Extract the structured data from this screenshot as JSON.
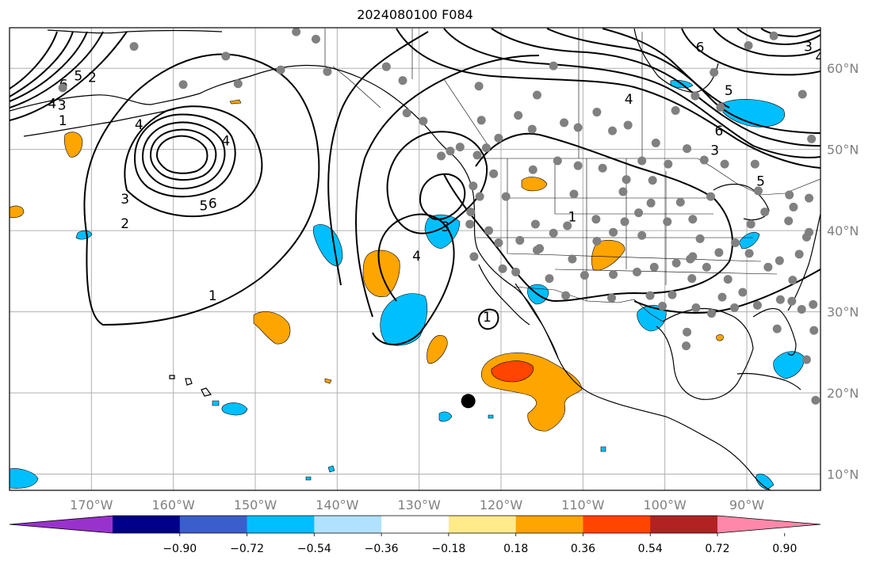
{
  "title": "2024080100 F084",
  "map": {
    "lon_range": [
      -180,
      -81
    ],
    "lat_range": [
      8,
      65
    ],
    "grid": true,
    "lon_labels": [
      "170°W",
      "160°W",
      "150°W",
      "140°W",
      "130°W",
      "120°W",
      "110°W",
      "100°W",
      "90°W"
    ],
    "lat_labels": [
      "10°N",
      "20°N",
      "30°N",
      "40°N",
      "50°N",
      "60°N"
    ],
    "lon_ticks": [
      -170,
      -160,
      -150,
      -140,
      -130,
      -120,
      -110,
      -100,
      -90
    ],
    "lat_ticks": [
      10,
      20,
      30,
      40,
      50,
      60
    ],
    "contour_color": "#000000",
    "contour_labels": [
      {
        "text": "6",
        "lon": -173.4,
        "lat": 57.9
      },
      {
        "text": "4",
        "lon": -174.8,
        "lat": 55.6
      },
      {
        "text": "3",
        "lon": -173.6,
        "lat": 55.4
      },
      {
        "text": "2",
        "lon": -169.9,
        "lat": 58.8
      },
      {
        "text": "5",
        "lon": -171.6,
        "lat": 59.0
      },
      {
        "text": "1",
        "lon": -173.5,
        "lat": 53.5
      },
      {
        "text": "4",
        "lon": -164.2,
        "lat": 53.0
      },
      {
        "text": "3",
        "lon": -165.9,
        "lat": 43.8
      },
      {
        "text": "2",
        "lon": -165.9,
        "lat": 40.8
      },
      {
        "text": "5",
        "lon": -156.3,
        "lat": 43.0
      },
      {
        "text": "6",
        "lon": -155.2,
        "lat": 43.3
      },
      {
        "text": "4",
        "lon": -153.6,
        "lat": 51.0
      },
      {
        "text": "1",
        "lon": -155.2,
        "lat": 31.9
      },
      {
        "text": "3",
        "lon": -126.8,
        "lat": 40.4
      },
      {
        "text": "4",
        "lon": -130.3,
        "lat": 36.8
      },
      {
        "text": "1",
        "lon": -121.7,
        "lat": 29.3
      },
      {
        "text": "1",
        "lon": -111.3,
        "lat": 41.6
      },
      {
        "text": "3",
        "lon": -93.9,
        "lat": 49.8
      },
      {
        "text": "5",
        "lon": -88.3,
        "lat": 46.0
      },
      {
        "text": "6",
        "lon": -93.4,
        "lat": 52.2
      },
      {
        "text": "4",
        "lon": -104.4,
        "lat": 56.1
      },
      {
        "text": "3",
        "lon": -82.5,
        "lat": 62.6
      },
      {
        "text": "4",
        "lon": -81.1,
        "lat": 61.3
      },
      {
        "text": "6",
        "lon": -95.7,
        "lat": 62.5
      },
      {
        "text": "5",
        "lon": -92.2,
        "lat": 57.2
      }
    ],
    "hurricane_marker": {
      "lon": -124,
      "lat": 19.0,
      "color": "#000000"
    },
    "station_color": "#808080",
    "stations": [
      [
        -173.5,
        57.6
      ],
      [
        -164.8,
        62.7
      ],
      [
        -158.8,
        58.0
      ],
      [
        -153.6,
        61.5
      ],
      [
        -152.1,
        58.1
      ],
      [
        -146.9,
        59.8
      ],
      [
        -145.0,
        64.5
      ],
      [
        -142.6,
        63.6
      ],
      [
        -141.2,
        59.6
      ],
      [
        -134.0,
        60.2
      ],
      [
        -132.0,
        58.5
      ],
      [
        -131.5,
        54.5
      ],
      [
        -129.5,
        53.5
      ],
      [
        -127.3,
        49.2
      ],
      [
        -126.2,
        49.8
      ],
      [
        -125.0,
        50.3
      ],
      [
        -122.7,
        57.8
      ],
      [
        -121.8,
        50.2
      ],
      [
        -122.4,
        53.6
      ],
      [
        -120.3,
        51.4
      ],
      [
        -117.9,
        54.2
      ],
      [
        -116.2,
        52.5
      ],
      [
        -115.6,
        56.7
      ],
      [
        -113.6,
        60.3
      ],
      [
        -112.3,
        53.3
      ],
      [
        -110.6,
        52.7
      ],
      [
        -108.3,
        54.6
      ],
      [
        -106.4,
        52.3
      ],
      [
        -104.5,
        53.0
      ],
      [
        -102.8,
        48.6
      ],
      [
        -101.1,
        50.8
      ],
      [
        -98.7,
        54.8
      ],
      [
        -96.3,
        56.6
      ],
      [
        -94.0,
        59.5
      ],
      [
        -97.3,
        50.1
      ],
      [
        -93.2,
        55.2
      ],
      [
        -89.8,
        62.8
      ],
      [
        -86.7,
        64.0
      ],
      [
        -83.2,
        56.8
      ],
      [
        -82.1,
        51.3
      ],
      [
        -89.0,
        48.2
      ],
      [
        -92.7,
        48.2
      ],
      [
        -95.2,
        48.7
      ],
      [
        -99.6,
        48.2
      ],
      [
        -101.5,
        46.2
      ],
      [
        -104.7,
        46.3
      ],
      [
        -107.6,
        47.7
      ],
      [
        -110.6,
        48.0
      ],
      [
        -113.1,
        48.6
      ],
      [
        -116.1,
        47.5
      ],
      [
        -120.9,
        47.0
      ],
      [
        -122.9,
        49.3
      ],
      [
        -123.4,
        45.5
      ],
      [
        -122.6,
        44.2
      ],
      [
        -123.7,
        42.3
      ],
      [
        -121.5,
        40.0
      ],
      [
        -123.3,
        36.8
      ],
      [
        -120.3,
        38.5
      ],
      [
        -117.7,
        38.8
      ],
      [
        -115.8,
        40.8
      ],
      [
        -113.6,
        39.7
      ],
      [
        -111.9,
        40.6
      ],
      [
        -108.4,
        41.4
      ],
      [
        -104.9,
        41.1
      ],
      [
        -101.7,
        43.4
      ],
      [
        -98.1,
        43.5
      ],
      [
        -94.4,
        44.2
      ],
      [
        -96.6,
        41.4
      ],
      [
        -99.7,
        41.1
      ],
      [
        -102.8,
        39.4
      ],
      [
        -106.3,
        39.8
      ],
      [
        -108.3,
        38.7
      ],
      [
        -109.8,
        34.5
      ],
      [
        -112.1,
        32.0
      ],
      [
        -114.1,
        34.1
      ],
      [
        -115.6,
        37.6
      ],
      [
        -118.2,
        34.9
      ],
      [
        -119.8,
        35.3
      ],
      [
        -106.3,
        34.6
      ],
      [
        -106.5,
        31.7
      ],
      [
        -103.4,
        34.9
      ],
      [
        -101.3,
        35.5
      ],
      [
        -98.6,
        36.0
      ],
      [
        -96.6,
        36.8
      ],
      [
        -94.9,
        35.5
      ],
      [
        -92.3,
        34.0
      ],
      [
        -90.5,
        32.4
      ],
      [
        -91.5,
        30.5
      ],
      [
        -94.3,
        29.8
      ],
      [
        -97.3,
        27.5
      ],
      [
        -97.4,
        25.8
      ],
      [
        -99.1,
        32.1
      ],
      [
        -101.8,
        32.0
      ],
      [
        -96.7,
        34.1
      ],
      [
        -95.7,
        39.0
      ],
      [
        -93.4,
        37.3
      ],
      [
        -91.4,
        38.5
      ],
      [
        -89.5,
        40.8
      ],
      [
        -87.8,
        42.3
      ],
      [
        -84.8,
        44.4
      ],
      [
        -84.3,
        42.9
      ],
      [
        -82.4,
        44.0
      ],
      [
        -82.7,
        39.2
      ],
      [
        -83.6,
        37.1
      ],
      [
        -84.4,
        33.9
      ],
      [
        -86.0,
        36.3
      ],
      [
        -87.4,
        35.5
      ],
      [
        -84.5,
        31.3
      ],
      [
        -83.3,
        30.3
      ],
      [
        -81.9,
        30.9
      ],
      [
        -85.9,
        31.5
      ],
      [
        -88.7,
        30.8
      ],
      [
        -86.3,
        27.9
      ],
      [
        -81.8,
        27.7
      ],
      [
        -82.7,
        24.1
      ],
      [
        -81.6,
        19.1
      ],
      [
        -82.4,
        39.8
      ],
      [
        -84.9,
        41.2
      ],
      [
        -88.6,
        44.9
      ],
      [
        -96.9,
        36.5
      ],
      [
        -89.7,
        37.2
      ],
      [
        -103.2,
        42.2
      ],
      [
        -105.1,
        44.8
      ],
      [
        -111.1,
        44.5
      ],
      [
        -119.4,
        44.2
      ],
      [
        -123.8,
        40.8
      ],
      [
        -115.3,
        37.8
      ],
      [
        -111.3,
        36.5
      ],
      [
        -93.0,
        31.8
      ],
      [
        -100.3,
        30.7
      ],
      [
        -96.2,
        30.5
      ]
    ],
    "colorbar": {
      "levels": [
        -0.9,
        -0.72,
        -0.54,
        -0.36,
        -0.18,
        0.18,
        0.36,
        0.54,
        0.72,
        0.9
      ],
      "labels": [
        "−0.90",
        "−0.72",
        "−0.54",
        "−0.36",
        "−0.18",
        "0.18",
        "0.36",
        "0.54",
        "0.72",
        "0.90"
      ],
      "colors": [
        "#9932cc",
        "#00008b",
        "#3a5fcd",
        "#00bfff",
        "#b0e2ff",
        "#ffffff",
        "#ffeb8a",
        "#ffa500",
        "#ff4500",
        "#b22222",
        "#ff88aa"
      ]
    }
  }
}
